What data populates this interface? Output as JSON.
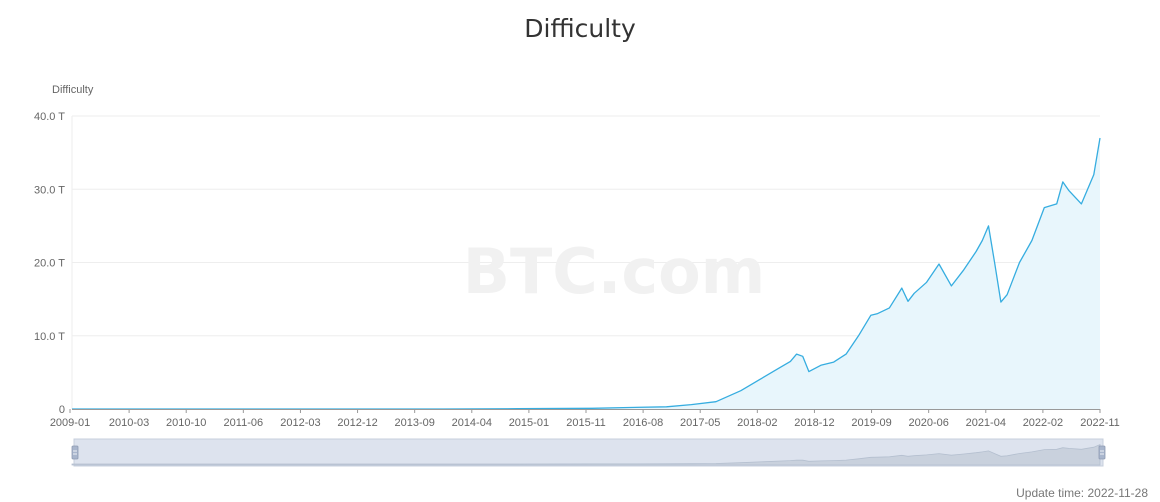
{
  "page": {
    "title": "Difficulty",
    "update_label": "Update time:",
    "update_value": "2022-11-28",
    "watermark": "BTC.com"
  },
  "colors": {
    "line": "#36ade0",
    "area": "#e8f6fc",
    "grid": "#eeeeee",
    "axis_text": "#666666",
    "slider_bg": "#dde3ee",
    "slider_handle": "#a9b6cd"
  },
  "chart_data": {
    "type": "area",
    "title": "Difficulty",
    "xlabel": "",
    "ylabel": "Difficulty",
    "y_unit": "T",
    "ylim": [
      0,
      40
    ],
    "y_ticks": [
      {
        "value": 0,
        "label": "0"
      },
      {
        "value": 10,
        "label": "10.0 T"
      },
      {
        "value": 20,
        "label": "20.0 T"
      },
      {
        "value": 30,
        "label": "30.0 T"
      },
      {
        "value": 40,
        "label": "40.0 T"
      }
    ],
    "x_ticks": [
      "2009-01",
      "2010-03",
      "2010-10",
      "2011-06",
      "2012-03",
      "2012-12",
      "2013-09",
      "2014-04",
      "2015-01",
      "2015-11",
      "2016-08",
      "2017-05",
      "2018-02",
      "2018-12",
      "2019-09",
      "2020-06",
      "2021-04",
      "2022-02",
      "2022-11"
    ],
    "xlim": [
      "2009-01",
      "2022-11"
    ],
    "grid": true,
    "legend": "none",
    "series": [
      {
        "name": "Difficulty",
        "x": [
          "2009-01",
          "2013-01",
          "2014-01",
          "2015-01",
          "2016-01",
          "2016-07",
          "2017-01",
          "2017-05",
          "2017-09",
          "2018-01",
          "2018-04",
          "2018-07",
          "2018-09",
          "2018-10",
          "2018-11",
          "2018-12",
          "2019-02",
          "2019-04",
          "2019-06",
          "2019-08",
          "2019-10",
          "2019-11",
          "2020-01",
          "2020-03",
          "2020-04",
          "2020-05",
          "2020-07",
          "2020-09",
          "2020-11",
          "2021-01",
          "2021-03",
          "2021-04",
          "2021-05",
          "2021-06",
          "2021-07",
          "2021-08",
          "2021-10",
          "2021-12",
          "2022-02",
          "2022-04",
          "2022-05",
          "2022-06",
          "2022-08",
          "2022-10",
          "2022-11"
        ],
        "y": [
          0,
          0.003,
          0.004,
          0.04,
          0.1,
          0.2,
          0.3,
          0.6,
          1.0,
          2.5,
          4.0,
          5.5,
          6.5,
          7.5,
          7.2,
          5.1,
          6.0,
          6.4,
          7.5,
          10.0,
          12.8,
          13.0,
          13.8,
          16.5,
          14.7,
          15.8,
          17.3,
          19.8,
          16.8,
          19.0,
          21.5,
          23.0,
          25.0,
          19.9,
          14.6,
          15.6,
          20.0,
          23.0,
          27.5,
          28.0,
          31.0,
          29.8,
          28.0,
          32.0,
          37.0
        ]
      }
    ]
  }
}
